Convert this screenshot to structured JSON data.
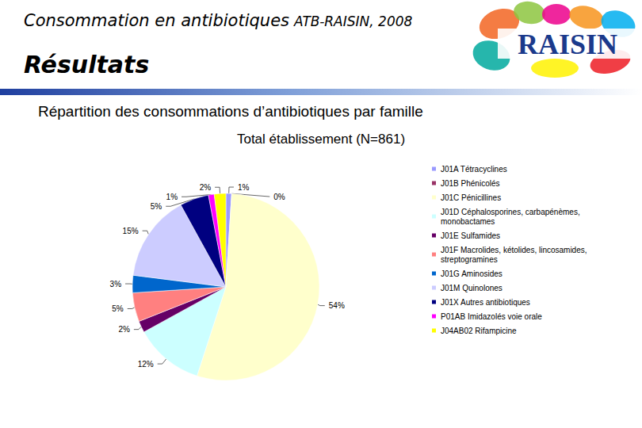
{
  "header": {
    "title": "Consommation en antibiotiques",
    "title_suffix": "ATB-RAISIN, 2008",
    "section": "Résultats",
    "subtitle": "Répartition des consommations d’antibiotiques par famille",
    "logo_text": "RAISIN"
  },
  "chart_data": {
    "type": "pie",
    "title": "Total établissement (N=861)",
    "categories": [
      "J01A Tétracyclines",
      "J01B Phénicolés",
      "J01C Pénicillines",
      "J01D Céphalosporines, carbapénèmes, monobactames",
      "J01E Sulfamides",
      "J01F Macrolides, kétolides, lincosamides, streptogramines",
      "J01G Aminosides",
      "J01M Quinolones",
      "J01X Autres antibiotiques",
      "P01AB Imidazolés voie orale",
      "J04AB02 Rifampicine"
    ],
    "values": [
      1,
      0,
      54,
      12,
      2,
      5,
      3,
      15,
      5,
      1,
      2
    ],
    "value_labels": [
      "1%",
      "0%",
      "54%",
      "12%",
      "2%",
      "5%",
      "3%",
      "15%",
      "5%",
      "1%",
      "2%"
    ],
    "colors": [
      "#9999ff",
      "#993366",
      "#ffffcc",
      "#ccffff",
      "#660066",
      "#ff8080",
      "#0066cc",
      "#ccccff",
      "#000080",
      "#ff00ff",
      "#ffff00"
    ],
    "legend": "right",
    "data_labels": true
  }
}
